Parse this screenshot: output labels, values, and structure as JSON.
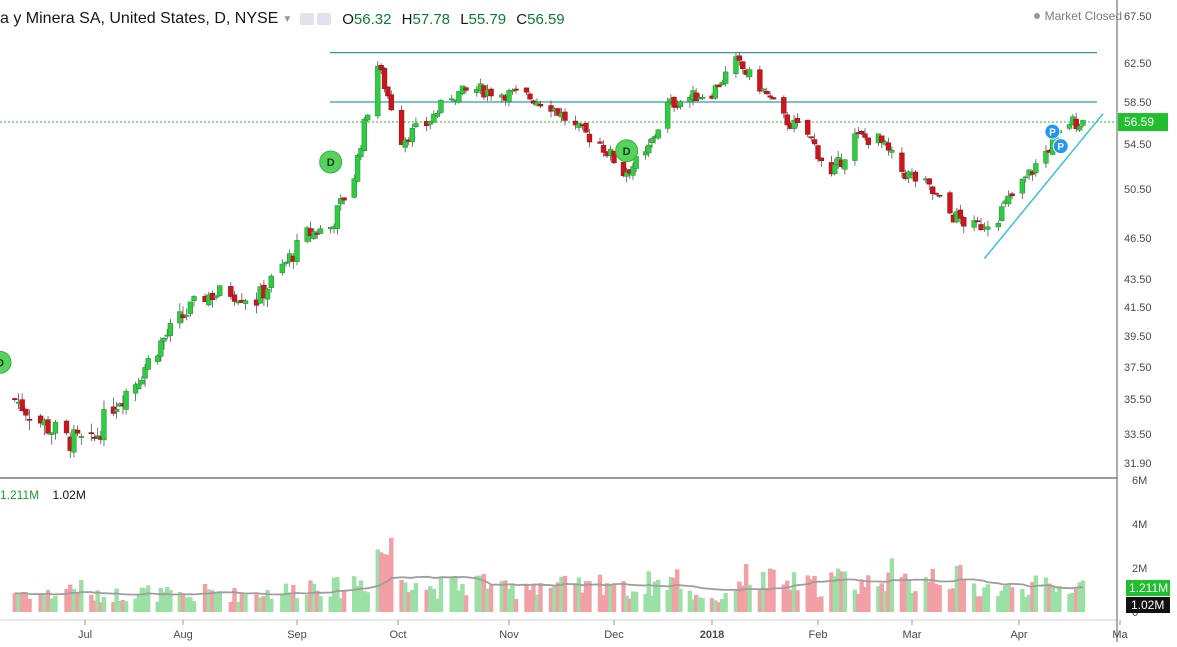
{
  "legend": {
    "title": "a y Minera SA, United States, D, NYSE",
    "o_label": "O",
    "o_value": "56.32",
    "h_label": "H",
    "h_value": "57.78",
    "l_label": "L",
    "l_value": "55.79",
    "c_label": "C",
    "c_value": "56.59"
  },
  "market_status": "Market Closed",
  "volume_legend": {
    "volume": "1.211M",
    "average": "1.02M"
  },
  "colors": {
    "up": "#2ecc40",
    "down": "#d0141c",
    "up_vol": "#9be0a4",
    "down_vol": "#f2a0a6",
    "hline": "#2c9db0",
    "trend": "#30c0d0",
    "ma": "#9e9e9e",
    "last": "#1fbf2e"
  },
  "chart_data": {
    "type": "candlestick",
    "x_ticks": [
      "Jul",
      "Aug",
      "Sep",
      "Oct",
      "Nov",
      "Dec",
      "2018",
      "Feb",
      "Mar",
      "Apr",
      "Ma"
    ],
    "y_ticks": [
      67.5,
      62.5,
      58.5,
      54.5,
      50.5,
      46.5,
      43.5,
      41.5,
      39.5,
      37.5,
      35.5,
      33.5,
      31.9
    ],
    "y_tick_labels": [
      "67.50",
      "62.50",
      "58.50",
      "54.50",
      "50.50",
      "46.50",
      "43.50",
      "41.50",
      "39.50",
      "37.50",
      "35.50",
      "33.50",
      "31.90"
    ],
    "last_price": "56.59",
    "horizontal_lines": [
      63.6,
      58.5
    ],
    "trend_line": [
      {
        "date": "2018-03-22",
        "price": 45.0
      },
      {
        "date": "2018-04-20",
        "price": 56.9
      }
    ],
    "volume_axis": {
      "ticks": [
        "0",
        "2M",
        "4M",
        "6M"
      ],
      "values": [
        0,
        2,
        4,
        6
      ]
    },
    "volume_badges": [
      "1.211M",
      "1.02M"
    ],
    "dividend_markers": [
      "D",
      "D",
      "D"
    ],
    "split_markers": [
      "P",
      "P"
    ],
    "close_trace": [
      [
        "2017-06-12",
        35.5
      ],
      [
        "2017-06-19",
        34.2
      ],
      [
        "2017-06-26",
        33.2
      ],
      [
        "2017-07-03",
        32.9
      ],
      [
        "2017-07-10",
        35.2
      ],
      [
        "2017-07-17",
        36.6
      ],
      [
        "2017-07-24",
        38.8
      ],
      [
        "2017-07-31",
        40.6
      ],
      [
        "2017-08-07",
        42.3
      ],
      [
        "2017-08-14",
        42.6
      ],
      [
        "2017-08-21",
        42.0
      ],
      [
        "2017-08-28",
        44.3
      ],
      [
        "2017-09-04",
        46.8
      ],
      [
        "2017-09-11",
        47.4
      ],
      [
        "2017-09-18",
        51.7
      ],
      [
        "2017-09-25",
        62.3
      ],
      [
        "2017-10-02",
        55.0
      ],
      [
        "2017-10-09",
        56.4
      ],
      [
        "2017-10-16",
        59.2
      ],
      [
        "2017-10-23",
        59.8
      ],
      [
        "2017-10-30",
        59.4
      ],
      [
        "2017-11-06",
        59.1
      ],
      [
        "2017-11-13",
        58.2
      ],
      [
        "2017-11-20",
        56.0
      ],
      [
        "2017-11-27",
        54.6
      ],
      [
        "2017-12-04",
        52.0
      ],
      [
        "2017-12-11",
        53.4
      ],
      [
        "2017-12-18",
        58.2
      ],
      [
        "2017-12-25",
        59.0
      ],
      [
        "2018-01-01",
        59.5
      ],
      [
        "2018-01-08",
        62.6
      ],
      [
        "2018-01-15",
        60.1
      ],
      [
        "2018-01-22",
        56.9
      ],
      [
        "2018-01-29",
        55.4
      ],
      [
        "2018-02-05",
        51.6
      ],
      [
        "2018-02-12",
        55.2
      ],
      [
        "2018-02-19",
        54.9
      ],
      [
        "2018-02-26",
        52.1
      ],
      [
        "2018-03-05",
        50.8
      ],
      [
        "2018-03-12",
        48.5
      ],
      [
        "2018-03-19",
        47.3
      ],
      [
        "2018-03-26",
        48.4
      ],
      [
        "2018-04-02",
        51.0
      ],
      [
        "2018-04-09",
        53.8
      ],
      [
        "2018-04-16",
        56.6
      ]
    ],
    "volume_trace_millions": [
      0.9,
      0.8,
      1.1,
      0.7,
      0.8,
      0.9,
      0.8,
      0.7,
      0.9,
      0.8,
      0.9,
      1.0,
      1.3,
      1.1,
      1.4,
      2.8,
      1.6,
      1.1,
      1.2,
      1.4,
      1.0,
      1.3,
      1.2,
      1.1,
      1.4,
      1.0,
      1.3,
      1.5,
      0.8,
      0.6,
      1.6,
      1.4,
      1.3,
      1.2,
      1.5,
      1.3,
      1.7,
      1.3,
      1.8,
      1.5,
      1.1,
      1.0,
      1.2,
      1.1,
      1.2
    ]
  }
}
